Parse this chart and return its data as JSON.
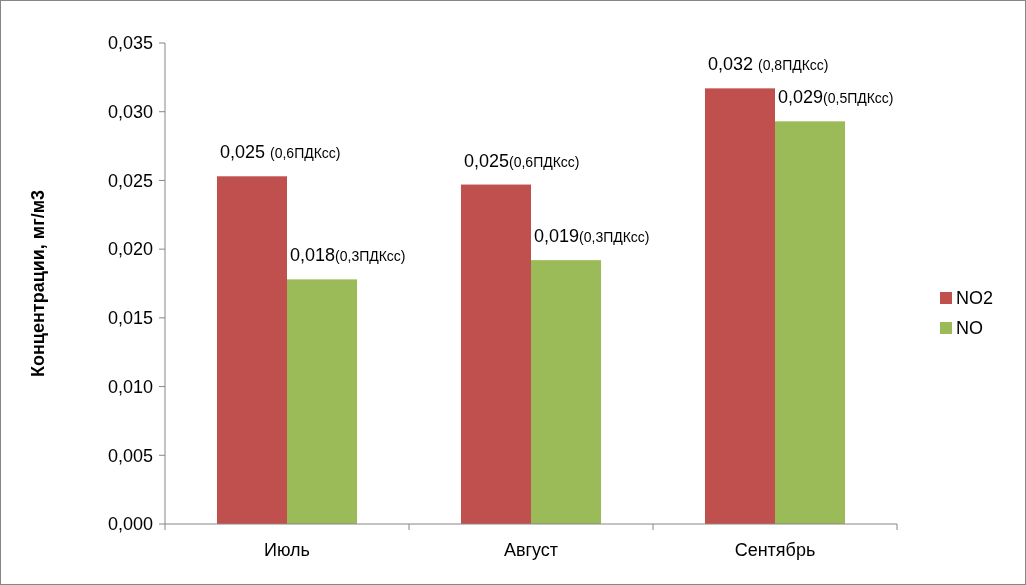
{
  "chart_data": {
    "type": "bar",
    "ylabel": "Концентрации, мг/м3",
    "categories": [
      "Июль",
      "Август",
      "Сентябрь"
    ],
    "series": [
      {
        "name": "NO2",
        "color": "#c0504d",
        "values": [
          0.0253,
          0.0247,
          0.0317
        ],
        "value_labels": [
          "0,025 (0,6ПДКсс)",
          "0,025(0,6ПДКсс)",
          "0,032 (0,8ПДКсс)"
        ]
      },
      {
        "name": "NO",
        "color": "#9bbb59",
        "values": [
          0.0178,
          0.0192,
          0.0293
        ],
        "value_labels": [
          "0,018(0,3ПДКсс)",
          "0,019(0,3ПДКсс)",
          "0,029(0,5ПДКсс)"
        ]
      }
    ],
    "ylim": [
      0,
      0.035
    ],
    "yticks": [
      {
        "value": 0,
        "label": "0,000"
      },
      {
        "value": 0.005,
        "label": "0,005"
      },
      {
        "value": 0.01,
        "label": "0,010"
      },
      {
        "value": 0.015,
        "label": "0,015"
      },
      {
        "value": 0.02,
        "label": "0,020"
      },
      {
        "value": 0.025,
        "label": "0,025"
      },
      {
        "value": 0.03,
        "label": "0,030"
      },
      {
        "value": 0.035,
        "label": "0,035"
      }
    ],
    "grid": false,
    "legend": "right"
  }
}
